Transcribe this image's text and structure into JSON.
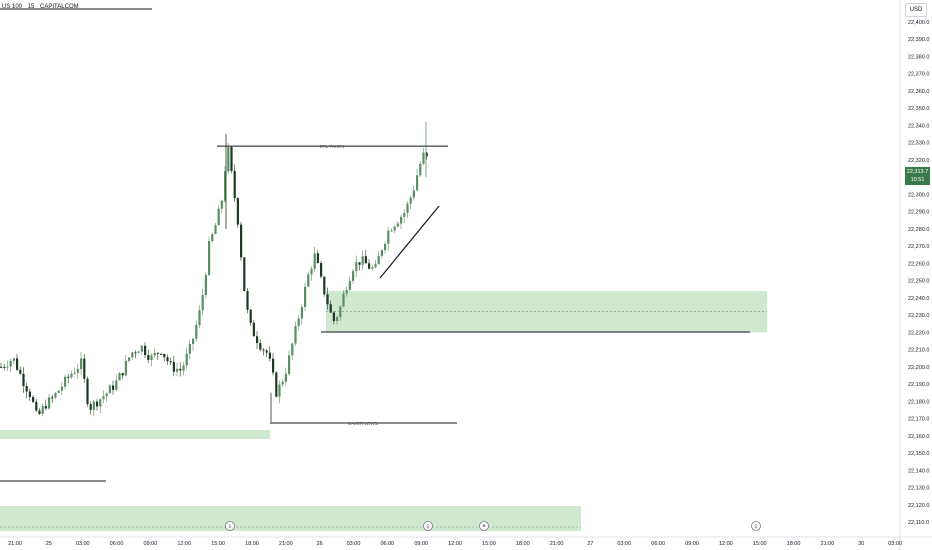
{
  "header": {
    "symbol": "US 100",
    "timeframe": "15",
    "broker": "CAPITALCOM"
  },
  "currency": "USD",
  "last_price": {
    "price": "22,313.7",
    "countdown": "10:51"
  },
  "annotations": {
    "erl_taken": "ERL TAKEN",
    "major_level": "MAJOR LEVEL"
  },
  "colors": {
    "zone": "#cfe8cf",
    "up_candle": "#5a8f62",
    "down_candle": "#1c3a22",
    "line": "#131722",
    "badge": "#3a7a48"
  },
  "event_icons": [
    "dollar-icon",
    "dollar-icon",
    "flag-icon",
    "dollar-icon"
  ],
  "chart_data": {
    "type": "candlestick",
    "title": "",
    "y_ticks": [
      "22,400.0",
      "22,390.0",
      "22,380.0",
      "22,370.0",
      "22,360.0",
      "22,350.0",
      "22,340.0",
      "22,330.0",
      "22,320.0",
      "22,310.0",
      "22,300.0",
      "22,290.0",
      "22,280.0",
      "22,270.0",
      "22,260.0",
      "22,250.0",
      "22,240.0",
      "22,230.0",
      "22,220.0",
      "22,210.0",
      "22,200.0",
      "22,190.0",
      "22,180.0",
      "22,170.0",
      "22,160.0",
      "22,150.0",
      "22,140.0",
      "22,130.0",
      "22,120.0",
      "22,110.0"
    ],
    "x_ticks": [
      "21:00",
      "25",
      "03:00",
      "06:00",
      "09:00",
      "12:00",
      "15:00",
      "18:00",
      "21:00",
      "26",
      "03:00",
      "06:00",
      "09:00",
      "12:00",
      "15:00",
      "18:00",
      "21:00",
      "27",
      "03:00",
      "06:00",
      "09:00",
      "12:00",
      "15:00",
      "18:00",
      "21:00",
      "30",
      "03:00"
    ],
    "ylim": [
      22105,
      22405
    ],
    "close_path": [
      [
        0,
        22200
      ],
      [
        12,
        22205
      ],
      [
        22,
        22192
      ],
      [
        30,
        22183
      ],
      [
        36,
        22170
      ],
      [
        44,
        22178
      ],
      [
        52,
        22182
      ],
      [
        62,
        22190
      ],
      [
        70,
        22196
      ],
      [
        80,
        22202
      ],
      [
        88,
        22176
      ],
      [
        96,
        22180
      ],
      [
        106,
        22185
      ],
      [
        114,
        22190
      ],
      [
        122,
        22198
      ],
      [
        130,
        22208
      ],
      [
        140,
        22212
      ],
      [
        150,
        22205
      ],
      [
        160,
        22210
      ],
      [
        170,
        22200
      ],
      [
        180,
        22198
      ],
      [
        190,
        22212
      ],
      [
        200,
        22235
      ],
      [
        208,
        22270
      ],
      [
        216,
        22285
      ],
      [
        222,
        22300
      ],
      [
        226,
        22330
      ],
      [
        232,
        22305
      ],
      [
        238,
        22280
      ],
      [
        242,
        22250
      ],
      [
        248,
        22225
      ],
      [
        254,
        22218
      ],
      [
        260,
        22212
      ],
      [
        266,
        22208
      ],
      [
        270,
        22200
      ],
      [
        275,
        22185
      ],
      [
        280,
        22190
      ],
      [
        286,
        22200
      ],
      [
        292,
        22215
      ],
      [
        300,
        22235
      ],
      [
        308,
        22255
      ],
      [
        314,
        22265
      ],
      [
        320,
        22250
      ],
      [
        326,
        22238
      ],
      [
        332,
        22226
      ],
      [
        338,
        22232
      ],
      [
        344,
        22245
      ],
      [
        352,
        22258
      ],
      [
        360,
        22262
      ],
      [
        368,
        22258
      ],
      [
        374,
        22256
      ],
      [
        380,
        22268
      ],
      [
        388,
        22280
      ],
      [
        396,
        22285
      ],
      [
        404,
        22290
      ],
      [
        412,
        22302
      ],
      [
        418,
        22316
      ],
      [
        424,
        22325
      ],
      [
        428,
        22314
      ]
    ],
    "horizontal_levels": [
      {
        "label": "ERL TAKEN",
        "price": 22328
      },
      {
        "label": "MAJOR LEVEL",
        "price": 22168
      },
      {
        "label": "",
        "price": 22220
      },
      {
        "label": "",
        "price": 22395
      },
      {
        "label": "",
        "price": 22140
      }
    ],
    "zones": [
      {
        "top": 22244,
        "bottom": 22220,
        "mid": 22232
      },
      {
        "top": 22166,
        "bottom": 22161
      },
      {
        "top": 22123,
        "bottom": 22110,
        "mid": 22114
      }
    ],
    "trendline": [
      [
        22260
      ],
      [
        22295
      ]
    ],
    "grid": false
  }
}
